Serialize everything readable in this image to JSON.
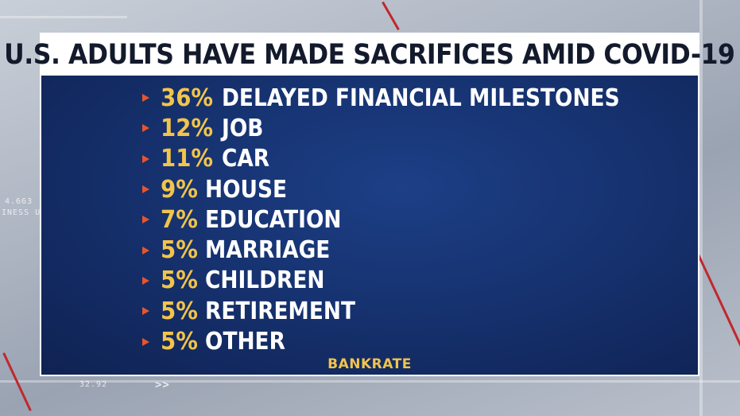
{
  "graphic": {
    "title": "U.S. ADULTS HAVE MADE SACRIFICES AMID COVID-19",
    "items": [
      {
        "percent": "36%",
        "label": "DELAYED FINANCIAL MILESTONES"
      },
      {
        "percent": "12%",
        "label": "JOB"
      },
      {
        "percent": "11%",
        "label": "CAR"
      },
      {
        "percent": "9%",
        "label": "HOUSE"
      },
      {
        "percent": "7%",
        "label": "EDUCATION"
      },
      {
        "percent": "5%",
        "label": "MARRIAGE"
      },
      {
        "percent": "5%",
        "label": "CHILDREN"
      },
      {
        "percent": "5%",
        "label": "RETIREMENT"
      },
      {
        "percent": "5%",
        "label": "OTHER"
      }
    ],
    "source": "BANKRATE"
  },
  "background": {
    "ticker_top": "4.663",
    "ticker_mid": "INESS U",
    "ticker_bottom": "32.92",
    "ticker_bottom_arrows": ">>"
  },
  "colors": {
    "panel_blue": "#163270",
    "percent_gold": "#f2c44a",
    "bullet_orange": "#e8552b",
    "title_bar": "#ffffff"
  }
}
